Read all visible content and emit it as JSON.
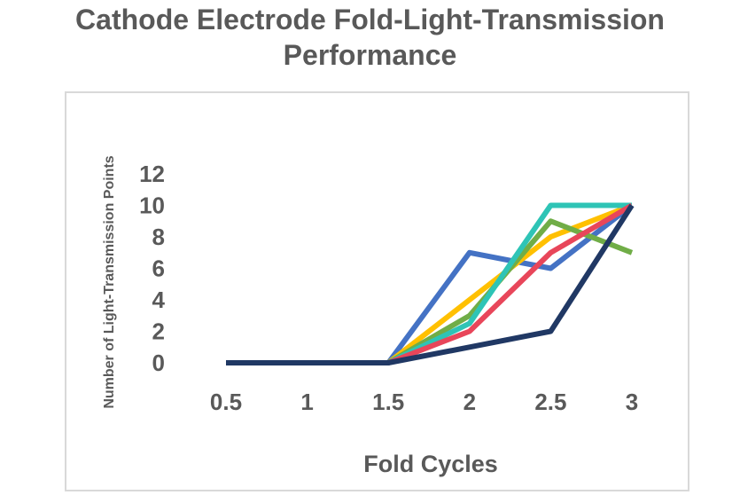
{
  "chart_data": {
    "type": "line",
    "title": "Cathode Electrode Fold-Light-Transmission Performance",
    "xlabel": "Fold Cycles",
    "ylabel": "Number of Light-Transmission Points",
    "x": [
      0.5,
      1,
      1.5,
      2,
      2.5,
      3
    ],
    "x_tick_labels": [
      "0.5",
      "1",
      "1.5",
      "2",
      "2.5",
      "3"
    ],
    "y_ticks": [
      0,
      2,
      4,
      6,
      8,
      10,
      12
    ],
    "ylim": [
      0,
      12
    ],
    "grid": false,
    "legend": "none",
    "series": [
      {
        "color": "#4472c4",
        "values": [
          0,
          0,
          0,
          7,
          6,
          10
        ]
      },
      {
        "color": "#ffc000",
        "values": [
          0,
          0,
          0,
          4,
          8,
          10
        ]
      },
      {
        "color": "#70ad47",
        "values": [
          0,
          0,
          0,
          3,
          9,
          7
        ]
      },
      {
        "color": "#2ec4b6",
        "values": [
          0,
          0,
          0,
          2.5,
          10,
          10
        ]
      },
      {
        "color": "#e8465a",
        "values": [
          0,
          0,
          0,
          2,
          7,
          10
        ]
      },
      {
        "color": "#203864",
        "values": [
          0,
          0,
          0,
          1,
          2,
          10
        ]
      }
    ]
  }
}
